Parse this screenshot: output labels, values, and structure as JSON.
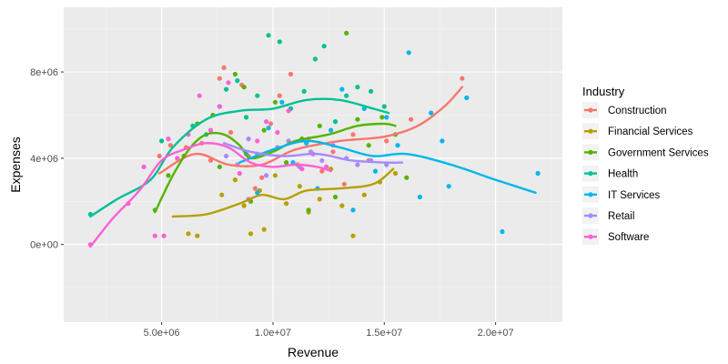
{
  "chart_data": {
    "type": "scatter",
    "title": "",
    "xlabel": "Revenue",
    "ylabel": "Expenses",
    "xlim": [
      600000,
      23000000
    ],
    "ylim": [
      -3600000,
      11000000
    ],
    "x_ticks": [
      5000000,
      10000000,
      15000000,
      20000000
    ],
    "x_tick_labels": [
      "5.0e+06",
      "1.0e+07",
      "1.5e+07",
      "2.0e+07"
    ],
    "y_ticks": [
      0,
      4000000,
      8000000
    ],
    "y_tick_labels": [
      "0e+00",
      "4e+06",
      "8e+06"
    ],
    "grid": true,
    "legend": {
      "title": "Industry",
      "placement": "right"
    },
    "series": [
      {
        "name": "Construction",
        "color": "#F8766D",
        "points": [
          [
            4900000,
            4100000
          ],
          [
            5400000,
            4600000
          ],
          [
            6100000,
            4500000
          ],
          [
            6800000,
            4700000
          ],
          [
            7200000,
            3900000
          ],
          [
            7600000,
            7700000
          ],
          [
            7800000,
            8200000
          ],
          [
            8100000,
            5200000
          ],
          [
            8600000,
            7400000
          ],
          [
            8900000,
            4100000
          ],
          [
            9200000,
            2600000
          ],
          [
            9500000,
            3100000
          ],
          [
            9900000,
            5600000
          ],
          [
            10300000,
            6900000
          ],
          [
            10800000,
            7900000
          ],
          [
            11100000,
            3700000
          ],
          [
            11600000,
            4900000
          ],
          [
            12200000,
            3400000
          ],
          [
            12700000,
            4300000
          ],
          [
            13200000,
            2800000
          ],
          [
            13600000,
            5100000
          ],
          [
            14300000,
            3900000
          ],
          [
            15100000,
            4800000
          ],
          [
            16200000,
            5800000
          ],
          [
            18500000,
            7700000
          ]
        ],
        "trend": [
          [
            4900000,
            3300000
          ],
          [
            6500000,
            4200000
          ],
          [
            8000000,
            3700000
          ],
          [
            9500000,
            3700000
          ],
          [
            11000000,
            4400000
          ],
          [
            13000000,
            4800000
          ],
          [
            15000000,
            5000000
          ],
          [
            16500000,
            5500000
          ],
          [
            17700000,
            6400000
          ],
          [
            18500000,
            7300000
          ]
        ]
      },
      {
        "name": "Financial Services",
        "color": "#B79F00",
        "points": [
          [
            6200000,
            500000
          ],
          [
            6600000,
            400000
          ],
          [
            7700000,
            2300000
          ],
          [
            8300000,
            3000000
          ],
          [
            8700000,
            1800000
          ],
          [
            9000000,
            500000
          ],
          [
            9400000,
            2500000
          ],
          [
            9600000,
            700000
          ],
          [
            10100000,
            3200000
          ],
          [
            10600000,
            1900000
          ],
          [
            11200000,
            2700000
          ],
          [
            11600000,
            1500000
          ],
          [
            12100000,
            2100000
          ],
          [
            12600000,
            3500000
          ],
          [
            13100000,
            1800000
          ],
          [
            13600000,
            400000
          ],
          [
            14100000,
            2300000
          ],
          [
            14800000,
            2900000
          ],
          [
            15500000,
            3300000
          ]
        ],
        "trend": [
          [
            5500000,
            1300000
          ],
          [
            7000000,
            1400000
          ],
          [
            8500000,
            1900000
          ],
          [
            9500000,
            2300000
          ],
          [
            10500000,
            2100000
          ],
          [
            11500000,
            2500000
          ],
          [
            13000000,
            2600000
          ],
          [
            14500000,
            2800000
          ],
          [
            15400000,
            3500000
          ]
        ]
      },
      {
        "name": "Government Services",
        "color": "#53B400",
        "points": [
          [
            4700000,
            1600000
          ],
          [
            5300000,
            3200000
          ],
          [
            6000000,
            4100000
          ],
          [
            6600000,
            5600000
          ],
          [
            7300000,
            6000000
          ],
          [
            7600000,
            3600000
          ],
          [
            8300000,
            7900000
          ],
          [
            8700000,
            7300000
          ],
          [
            9000000,
            2000000
          ],
          [
            9600000,
            5300000
          ],
          [
            10100000,
            6600000
          ],
          [
            10600000,
            3800000
          ],
          [
            11300000,
            4900000
          ],
          [
            11600000,
            1600000
          ],
          [
            12100000,
            5500000
          ],
          [
            12800000,
            2200000
          ],
          [
            13300000,
            9800000
          ],
          [
            13800000,
            5800000
          ],
          [
            14300000,
            4600000
          ],
          [
            14900000,
            5900000
          ],
          [
            15500000,
            5100000
          ],
          [
            16000000,
            3100000
          ]
        ],
        "trend": [
          [
            4700000,
            1500000
          ],
          [
            5500000,
            3200000
          ],
          [
            6300000,
            4500000
          ],
          [
            7000000,
            5100000
          ],
          [
            7800000,
            5100000
          ],
          [
            8500000,
            4600000
          ],
          [
            9000000,
            4000000
          ],
          [
            10000000,
            4300000
          ],
          [
            11000000,
            4800000
          ],
          [
            12500000,
            5100000
          ],
          [
            13800000,
            5500000
          ],
          [
            15000000,
            5600000
          ],
          [
            15500000,
            5500000
          ]
        ]
      },
      {
        "name": "Health",
        "color": "#00C094",
        "points": [
          [
            1800000,
            1400000
          ],
          [
            5000000,
            4800000
          ],
          [
            6400000,
            5500000
          ],
          [
            7000000,
            5100000
          ],
          [
            7600000,
            6400000
          ],
          [
            7900000,
            7200000
          ],
          [
            8400000,
            7600000
          ],
          [
            8800000,
            5900000
          ],
          [
            9300000,
            6900000
          ],
          [
            9800000,
            9700000
          ],
          [
            10300000,
            9400000
          ],
          [
            10800000,
            6300000
          ],
          [
            11400000,
            7100000
          ],
          [
            11900000,
            8600000
          ],
          [
            12300000,
            9200000
          ],
          [
            12800000,
            5700000
          ],
          [
            13300000,
            6900000
          ],
          [
            13800000,
            7300000
          ],
          [
            14400000,
            7100000
          ],
          [
            15000000,
            6400000
          ]
        ],
        "trend": [
          [
            1800000,
            1300000
          ],
          [
            3000000,
            2100000
          ],
          [
            4500000,
            3000000
          ],
          [
            5500000,
            4500000
          ],
          [
            7000000,
            5800000
          ],
          [
            8500000,
            6200000
          ],
          [
            10000000,
            6300000
          ],
          [
            11500000,
            6700000
          ],
          [
            13000000,
            6700000
          ],
          [
            14500000,
            6300000
          ],
          [
            15200000,
            6100000
          ]
        ]
      },
      {
        "name": "IT Services",
        "color": "#00B6EB",
        "points": [
          [
            8800000,
            4200000
          ],
          [
            9300000,
            2400000
          ],
          [
            9800000,
            5400000
          ],
          [
            10400000,
            6600000
          ],
          [
            10900000,
            3800000
          ],
          [
            11500000,
            4700000
          ],
          [
            12000000,
            2600000
          ],
          [
            12600000,
            5300000
          ],
          [
            13100000,
            7200000
          ],
          [
            13600000,
            1600000
          ],
          [
            14100000,
            6300000
          ],
          [
            14600000,
            3400000
          ],
          [
            15100000,
            5900000
          ],
          [
            15600000,
            4600000
          ],
          [
            16100000,
            8900000
          ],
          [
            16600000,
            2200000
          ],
          [
            17100000,
            6100000
          ],
          [
            17600000,
            4800000
          ],
          [
            17900000,
            2700000
          ],
          [
            18700000,
            6800000
          ],
          [
            20300000,
            600000
          ],
          [
            21900000,
            3300000
          ]
        ],
        "trend": [
          [
            8500000,
            3800000
          ],
          [
            10000000,
            4400000
          ],
          [
            11500000,
            4800000
          ],
          [
            13000000,
            4500000
          ],
          [
            14500000,
            4100000
          ],
          [
            16000000,
            4200000
          ],
          [
            18000000,
            3700000
          ],
          [
            20000000,
            3000000
          ],
          [
            21800000,
            2400000
          ]
        ]
      },
      {
        "name": "Retail",
        "color": "#A58AFF",
        "points": [
          [
            7900000,
            4100000
          ],
          [
            8400000,
            3700000
          ],
          [
            8900000,
            4900000
          ],
          [
            9300000,
            4200000
          ],
          [
            9700000,
            3200000
          ],
          [
            10200000,
            4500000
          ],
          [
            10700000,
            4800000
          ],
          [
            11200000,
            3600000
          ],
          [
            11700000,
            4300000
          ],
          [
            12200000,
            3900000
          ],
          [
            12700000,
            4600000
          ],
          [
            13300000,
            4000000
          ],
          [
            13800000,
            3700000
          ],
          [
            14400000,
            3900000
          ],
          [
            15100000,
            3700000
          ]
        ],
        "trend": [
          [
            7800000,
            4700000
          ],
          [
            9000000,
            4300000
          ],
          [
            10500000,
            4100000
          ],
          [
            12000000,
            4200000
          ],
          [
            13500000,
            3900000
          ],
          [
            15000000,
            3800000
          ],
          [
            15800000,
            3800000
          ]
        ]
      },
      {
        "name": "Software",
        "color": "#FB61D7",
        "points": [
          [
            1800000,
            0
          ],
          [
            3500000,
            1900000
          ],
          [
            4200000,
            3600000
          ],
          [
            4700000,
            400000
          ],
          [
            5100000,
            400000
          ],
          [
            5300000,
            4900000
          ],
          [
            5700000,
            4000000
          ],
          [
            6200000,
            5100000
          ],
          [
            6700000,
            6900000
          ],
          [
            7200000,
            5300000
          ],
          [
            7600000,
            6400000
          ],
          [
            8000000,
            7500000
          ],
          [
            8500000,
            3300000
          ],
          [
            8900000,
            2100000
          ],
          [
            9300000,
            4800000
          ],
          [
            9700000,
            5700000
          ],
          [
            10200000,
            5200000
          ],
          [
            10700000,
            6200000
          ],
          [
            11300000,
            3500000
          ],
          [
            11800000,
            4200000
          ],
          [
            12400000,
            3600000
          ]
        ],
        "trend": [
          [
            1800000,
            -100000
          ],
          [
            2800000,
            1200000
          ],
          [
            4000000,
            2500000
          ],
          [
            5000000,
            3900000
          ],
          [
            6000000,
            4400000
          ],
          [
            7000000,
            4700000
          ],
          [
            8000000,
            4500000
          ],
          [
            9000000,
            3800000
          ],
          [
            10000000,
            3600000
          ],
          [
            11000000,
            3700000
          ],
          [
            12000000,
            3600000
          ],
          [
            12600000,
            3400000
          ]
        ]
      }
    ]
  }
}
